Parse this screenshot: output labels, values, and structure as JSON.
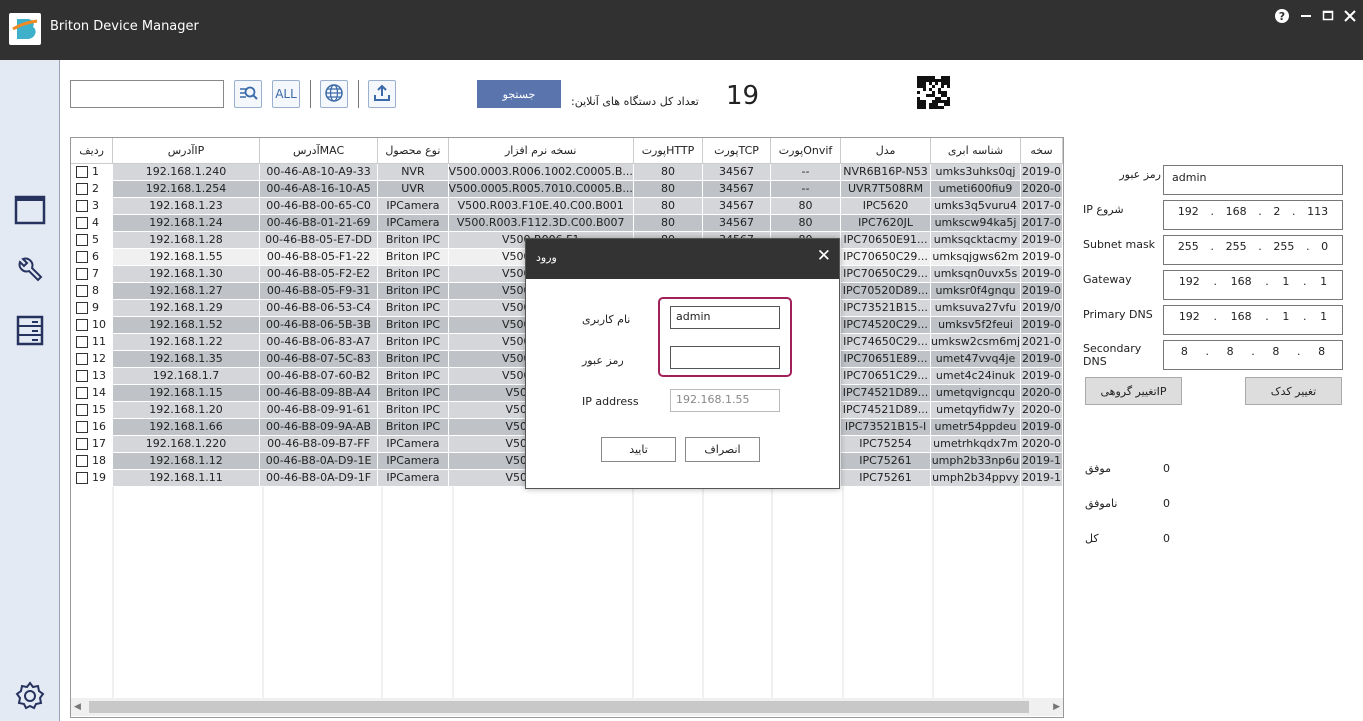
{
  "app": {
    "title": "Briton Device Manager",
    "window_controls": [
      "help-icon",
      "minimize-icon",
      "maximize-icon",
      "close-icon"
    ]
  },
  "sidebar": {
    "items": [
      "window-icon",
      "wrench-icon",
      "list-icon"
    ],
    "bottom": "gear-icon",
    "bg": "#e4eaf4"
  },
  "toolbar": {
    "search_value": "",
    "tools": [
      "search-list-icon",
      "ALL",
      "globe-icon",
      "upload-icon"
    ],
    "all_label": "ALL",
    "search_button": "جستجو",
    "online_label": "تعداد کل دستگاه های آنلاین:",
    "online_count": "19",
    "accent": "#5a74ae"
  },
  "table": {
    "columns": [
      "ردیف",
      "آدرسIP",
      "آدرسMAC",
      "نوع محصول",
      "نسخه نرم افزار",
      "پورتHTTP",
      "پورتTCP",
      "پورتOnvif",
      "مدل",
      "شناسه ابری",
      "سخه"
    ],
    "rows": [
      [
        "1",
        "192.168.1.240",
        "00-46-A8-10-A9-33",
        "NVR",
        "V500.0003.R006.1002.C0005.B...",
        "80",
        "34567",
        "--",
        "NVR6B16P-N53",
        "umks3uhks0qj",
        "2019-0"
      ],
      [
        "2",
        "192.168.1.254",
        "00-46-A8-16-10-A5",
        "UVR",
        "V500.0005.R005.7010.C0005.B...",
        "80",
        "34567",
        "--",
        "UVR7T508RM",
        "umeti600fiu9",
        "2020-0"
      ],
      [
        "3",
        "192.168.1.23",
        "00-46-B8-00-65-C0",
        "IPCamera",
        "V500.R003.F10E.40.C00.B001",
        "80",
        "34567",
        "80",
        "IPC5620",
        "umks3q5vuru4",
        "2017-0"
      ],
      [
        "4",
        "192.168.1.24",
        "00-46-B8-01-21-69",
        "IPCamera",
        "V500.R003.F112.3D.C00.B007",
        "80",
        "34567",
        "80",
        "IPC7620JL",
        "umkscw94ka5j",
        "2017-0"
      ],
      [
        "5",
        "192.168.1.28",
        "00-46-B8-05-E7-DD",
        "Briton IPC",
        "V500.R006.F1",
        "80",
        "34567",
        "80",
        "IPC70650E91...",
        "umksqcktacmy",
        "2019-0"
      ],
      [
        "6",
        "192.168.1.55",
        "00-46-B8-05-F1-22",
        "Briton IPC",
        "V500.R006.F1",
        "",
        "",
        "",
        "IPC70650C29...",
        "umksqjgws62m",
        "2019-0"
      ],
      [
        "7",
        "192.168.1.30",
        "00-46-B8-05-F2-E2",
        "Briton IPC",
        "V500.R006.F1",
        "",
        "",
        "",
        "IPC70650C29...",
        "umksqn0uvx5s",
        "2019-0"
      ],
      [
        "8",
        "192.168.1.27",
        "00-46-B8-05-F9-31",
        "Briton IPC",
        "V500.R005.F1",
        "",
        "",
        "",
        "IPC70520D89...",
        "umksr0f4gnqu",
        "2019-0"
      ],
      [
        "9",
        "192.168.1.29",
        "00-46-B8-06-53-C4",
        "Briton IPC",
        "V500.R006.F1",
        "",
        "",
        "",
        "IPC73521B15...",
        "umksuva27vfu",
        "2019/0"
      ],
      [
        "10",
        "192.168.1.52",
        "00-46-B8-06-5B-3B",
        "Briton IPC",
        "V500.R006.F1",
        "",
        "",
        "",
        "IPC74520C29...",
        "umksv5f2feui",
        "2019-0"
      ],
      [
        "11",
        "192.168.1.22",
        "00-46-B8-06-83-A7",
        "Briton IPC",
        "V500.R008.F1",
        "",
        "",
        "",
        "IPC74650C29...",
        "umksw2csm6mj",
        "2021-0"
      ],
      [
        "12",
        "192.168.1.35",
        "00-46-B8-07-5C-83",
        "Briton IPC",
        "V500.R006.F1",
        "",
        "",
        "",
        "IPC70651E89...",
        "umet47vvq4je",
        "2019-0"
      ],
      [
        "13",
        "192.168.1.7",
        "00-46-B8-07-60-B2",
        "Briton IPC",
        "V500.R006.F1",
        "",
        "",
        "",
        "IPC70651C29...",
        "umet4c24inuk",
        "2019-0"
      ],
      [
        "14",
        "192.168.1.15",
        "00-46-B8-09-8B-A4",
        "Briton IPC",
        "V500.R006.F",
        "",
        "",
        "",
        "IPC74521D89...",
        "umetqvigncqu",
        "2020-0"
      ],
      [
        "15",
        "192.168.1.20",
        "00-46-B8-09-91-61",
        "Briton IPC",
        "V500.R006.F",
        "",
        "",
        "",
        "IPC74521D89...",
        "umetqyfidw7y",
        "2020-0"
      ],
      [
        "16",
        "192.168.1.66",
        "00-46-B8-09-9A-AB",
        "Briton IPC",
        "V500.R006.F",
        "",
        "",
        "",
        "IPC73521B15-I",
        "umetr54ppdeu",
        "2019-0"
      ],
      [
        "17",
        "192.168.1.220",
        "00-46-B8-09-B7-FF",
        "IPCamera",
        "V500.R006.F",
        "",
        "",
        "",
        "IPC75254",
        "umetrhkqdx7m",
        "2020-0"
      ],
      [
        "18",
        "192.168.1.12",
        "00-46-B8-0A-D9-1E",
        "IPCamera",
        "V500.R006.F",
        "",
        "",
        "",
        "IPC75261",
        "umph2b33np6u",
        "2019-1"
      ],
      [
        "19",
        "192.168.1.11",
        "00-46-B8-0A-D9-1F",
        "IPCamera",
        "V500.R006.F",
        "",
        "",
        "",
        "IPC75261",
        "umph2b34ppvy",
        "2019-1"
      ]
    ],
    "selected_row": "6"
  },
  "right_panel": {
    "password_label": "رمز عبور",
    "password_value": "admin",
    "start_ip_label": "IP شروع",
    "start_ip": [
      "192",
      "168",
      "2",
      "113"
    ],
    "subnet_label": "Subnet mask",
    "subnet": [
      "255",
      "255",
      "255",
      "0"
    ],
    "gateway_label": "Gateway",
    "gateway": [
      "192",
      "168",
      "1",
      "1"
    ],
    "dns1_label": "Primary DNS",
    "dns1": [
      "192",
      "168",
      "1",
      "1"
    ],
    "dns2_label": "Secondary DNS",
    "dns2": [
      "8",
      "8",
      "8",
      "8"
    ],
    "batch_ip_button": "تغییر گروهیIP",
    "change_code_button": "تغییر کدک",
    "success_label": "موفق",
    "success_value": "0",
    "fail_label": "ناموفق",
    "fail_value": "0",
    "total_label": "کل",
    "total_value": "0"
  },
  "dialog": {
    "title": "ورود",
    "username_label": "نام کاربری",
    "username_value": "admin",
    "password_label": "رمز عبور",
    "password_value": "",
    "ip_label": "IP address",
    "ip_value": "192.168.1.55",
    "ok_button": "تایید",
    "cancel_button": "انصراف",
    "highlight_color": "#a0205a"
  }
}
